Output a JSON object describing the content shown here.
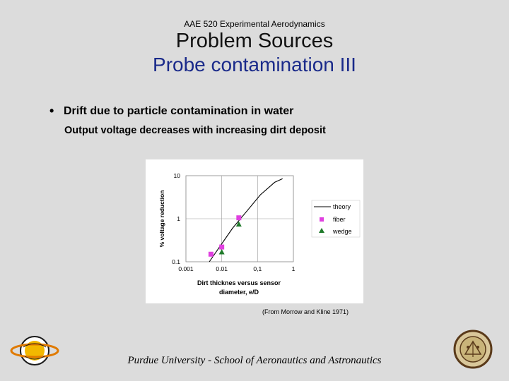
{
  "header": {
    "course": "AAE 520 Experimental Aerodynamics",
    "title": "Problem Sources",
    "subtitle": "Probe contamination III"
  },
  "body": {
    "bullet": "Drift due to particle contamination in water",
    "subbullet": "Output voltage decreases with increasing dirt deposit"
  },
  "chart_data": {
    "type": "scatter",
    "xlabel": "Dirt thicknes versus sensor diameter, e/D",
    "ylabel": "% voltage reduction",
    "x_scale": "log",
    "y_scale": "log",
    "xlim": [
      0.001,
      1
    ],
    "ylim": [
      0.1,
      10
    ],
    "x_ticks": [
      "0.001",
      "0.01",
      "0,1",
      "1"
    ],
    "y_ticks": [
      "10",
      "1",
      "0.1"
    ],
    "grid": true,
    "legend_position": "right",
    "series": [
      {
        "name": "theory",
        "kind": "line",
        "color": "#000000",
        "points": [
          [
            0.0045,
            0.1
          ],
          [
            0.008,
            0.2
          ],
          [
            0.02,
            0.6
          ],
          [
            0.05,
            1.5
          ],
          [
            0.12,
            3.6
          ],
          [
            0.3,
            7.0
          ],
          [
            0.5,
            8.5
          ]
        ]
      },
      {
        "name": "fiber",
        "kind": "square",
        "color": "#e040e0",
        "points": [
          [
            0.005,
            0.15
          ],
          [
            0.01,
            0.22
          ],
          [
            0.03,
            1.05
          ]
        ]
      },
      {
        "name": "wedge",
        "kind": "triangle",
        "color": "#1f7a2a",
        "points": [
          [
            0.01,
            0.17
          ],
          [
            0.03,
            0.75
          ]
        ]
      }
    ]
  },
  "citation": "(From Morrow and Kline 1971)",
  "footer": "Purdue University - School of Aeronautics and Astronautics",
  "logos": {
    "left": "PURDUE AERONAUTICS",
    "right": "PURDUE UNIVERSITY SEAL"
  }
}
